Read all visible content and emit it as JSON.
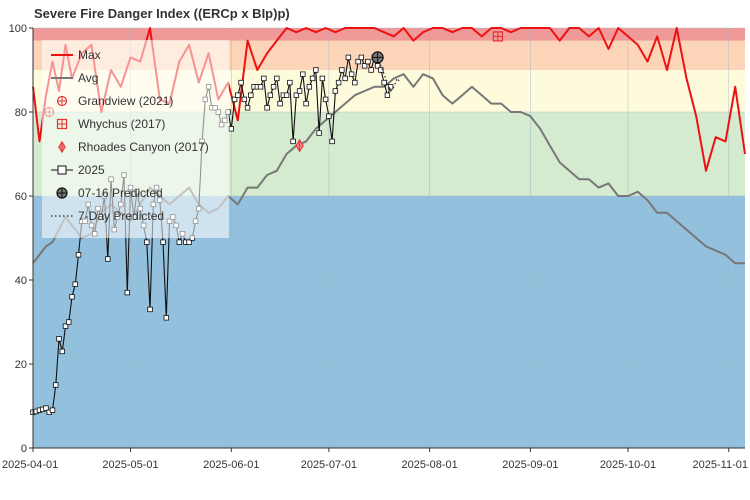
{
  "chart_data": {
    "type": "line",
    "title": "Severe Fire Danger Index ((ERCp x BIp)p)",
    "ylim": [
      0,
      100
    ],
    "y_ticks": [
      0,
      20,
      40,
      60,
      80,
      100
    ],
    "x_ticks": [
      "2025-04-01",
      "2025-05-01",
      "2025-06-01",
      "2025-07-01",
      "2025-08-01",
      "2025-09-01",
      "2025-10-01",
      "2025-11-01"
    ],
    "bands": [
      {
        "from": 0,
        "to": 60,
        "color": "#93c0dc"
      },
      {
        "from": 60,
        "to": 80,
        "color": "#d5ebcf"
      },
      {
        "from": 80,
        "to": 90,
        "color": "#fdfbdc"
      },
      {
        "from": 90,
        "to": 97,
        "color": "#fcd5b8"
      },
      {
        "from": 97,
        "to": 100,
        "color": "#ef9a98"
      }
    ],
    "legend": {
      "position": "top-left",
      "entries": [
        "Max",
        "Avg",
        "Grandview (2021)",
        "Whychus (2017)",
        "Rhoades Canyon (2017)",
        "2025",
        "07-16 Predicted",
        "7-Day Predicted"
      ]
    },
    "series": [
      {
        "name": "Max",
        "color": "#ee1111",
        "x": [
          0,
          2,
          4,
          6,
          8,
          10,
          12,
          15,
          18,
          21,
          24,
          27,
          30,
          33,
          36,
          39,
          42,
          45,
          48,
          51,
          54,
          57,
          60,
          63,
          66,
          69,
          72,
          75,
          78,
          81,
          84,
          87,
          90,
          93,
          96,
          99,
          102,
          105,
          108,
          111,
          114,
          117,
          120,
          123,
          126,
          129,
          132,
          135,
          138,
          141,
          144,
          147,
          150,
          153,
          156,
          159,
          162,
          165,
          168,
          171,
          174,
          177,
          180,
          183,
          186,
          189,
          192,
          195,
          198,
          201,
          204,
          207,
          210,
          213,
          216,
          219
        ],
        "values": [
          86,
          73,
          84,
          92,
          85,
          96,
          88,
          94,
          96,
          80,
          90,
          86,
          93,
          92,
          100,
          83,
          82,
          92,
          96,
          87,
          94,
          83,
          87,
          78,
          97,
          90,
          94,
          97,
          100,
          99,
          100,
          99,
          100,
          99,
          100,
          100,
          100,
          100,
          99,
          98,
          100,
          97,
          99,
          100,
          100,
          99,
          100,
          100,
          98,
          100,
          100,
          99,
          100,
          100,
          100,
          100,
          97,
          100,
          100,
          98,
          100,
          95,
          100,
          98,
          96,
          92,
          98,
          90,
          100,
          88,
          79,
          66,
          74,
          73,
          86,
          70
        ]
      },
      {
        "name": "Avg",
        "color": "#777777",
        "x": [
          0,
          2,
          4,
          6,
          8,
          10,
          12,
          15,
          18,
          21,
          24,
          27,
          30,
          33,
          36,
          39,
          42,
          45,
          48,
          51,
          54,
          57,
          60,
          63,
          66,
          69,
          72,
          75,
          78,
          81,
          84,
          87,
          90,
          93,
          96,
          99,
          102,
          105,
          108,
          111,
          114,
          117,
          120,
          123,
          126,
          129,
          132,
          135,
          138,
          141,
          144,
          147,
          150,
          153,
          156,
          159,
          162,
          165,
          168,
          171,
          174,
          177,
          180,
          183,
          186,
          189,
          192,
          195,
          198,
          201,
          204,
          207,
          210,
          213,
          216,
          219
        ],
        "values": [
          44,
          46,
          48,
          49,
          52,
          55,
          53,
          50,
          51,
          56,
          58,
          56,
          54,
          58,
          62,
          60,
          58,
          60,
          62,
          58,
          56,
          57,
          60,
          58,
          62,
          62,
          65,
          66,
          70,
          72,
          73,
          76,
          78,
          80,
          82,
          84,
          85,
          86,
          86,
          88,
          89,
          86,
          89,
          88,
          84,
          82,
          84,
          86,
          84,
          82,
          82,
          80,
          80,
          79,
          76,
          72,
          68,
          66,
          64,
          64,
          62,
          63,
          60,
          60,
          61,
          59,
          56,
          56,
          54,
          52,
          50,
          48,
          47,
          46,
          44,
          44
        ]
      },
      {
        "name": "2025",
        "color": "#111111",
        "x": [
          0,
          1,
          2,
          3,
          4,
          5,
          6,
          7,
          8,
          9,
          10,
          11,
          12,
          13,
          14,
          15,
          16,
          17,
          18,
          19,
          20,
          21,
          22,
          23,
          24,
          25,
          26,
          27,
          28,
          29,
          30,
          31,
          32,
          33,
          34,
          35,
          36,
          37,
          38,
          39,
          40,
          41,
          42,
          43,
          44,
          45,
          46,
          47,
          48,
          49,
          50,
          51,
          52,
          53,
          54,
          55,
          56,
          57,
          58,
          59,
          60,
          61,
          62,
          63,
          64,
          65,
          66,
          67,
          68,
          69,
          70,
          71,
          72,
          73,
          74,
          75,
          76,
          77,
          78,
          79,
          80,
          81,
          82,
          83,
          84,
          85,
          86,
          87,
          88,
          89,
          90,
          91,
          92,
          93,
          94,
          95,
          96,
          97,
          98,
          99,
          100,
          101,
          102,
          103,
          104,
          105,
          106,
          107,
          108,
          109,
          110
        ],
        "values": [
          8.5,
          8.7,
          9,
          9.2,
          9.5,
          8.5,
          9,
          15,
          26,
          23,
          29,
          30,
          36,
          39,
          46,
          54,
          54,
          58,
          53,
          51,
          57,
          55,
          60,
          45,
          64,
          52,
          55,
          58,
          65,
          37,
          62,
          55,
          61,
          57,
          53,
          49,
          33,
          58,
          62,
          59,
          49,
          31,
          54,
          55,
          53,
          49,
          51,
          49,
          49,
          50,
          54,
          57,
          73,
          83,
          86,
          81,
          81,
          80,
          77,
          78,
          80,
          76,
          83,
          84,
          87,
          83,
          81,
          84,
          86,
          86,
          86,
          88,
          81,
          84,
          86,
          88,
          82,
          84,
          84,
          87,
          73,
          84,
          85,
          89,
          82,
          86,
          88,
          90,
          75,
          88,
          83,
          79,
          73,
          85,
          87,
          90,
          88,
          93,
          89,
          87,
          92,
          93,
          91,
          92,
          90,
          93,
          91,
          90,
          87,
          84,
          86
        ]
      }
    ],
    "historic_points": [
      {
        "name": "Grandview (2021)",
        "x": 5,
        "y": 80,
        "marker": "circle-plus",
        "color": "#e33333"
      },
      {
        "name": "Whychus (2017)",
        "x": 143,
        "y": 98,
        "marker": "square-plus",
        "color": "#e33333"
      },
      {
        "name": "Rhoades Canyon (2017)",
        "x": 82,
        "y": 72,
        "marker": "diamond-plus",
        "color": "#e33333"
      }
    ],
    "predicted": {
      "label": "07-16 Predicted",
      "x": 106,
      "y": 93
    },
    "seven_day_predicted": {
      "label": "7-Day Predicted",
      "x": [
        106,
        107,
        108,
        109,
        110,
        111,
        112,
        113
      ],
      "values": [
        93,
        91,
        89,
        87,
        85,
        86,
        88,
        87
      ]
    }
  }
}
